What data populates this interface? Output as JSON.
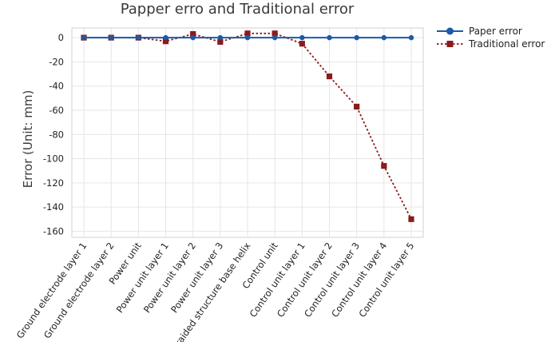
{
  "chart_data": {
    "type": "line",
    "title": "Papper erro and Traditional error",
    "xlabel": "",
    "ylabel": "Error (Unit: mm)",
    "ylim": [
      -165,
      8
    ],
    "yticks": [
      0,
      -20,
      -40,
      -60,
      -80,
      -100,
      -120,
      -140,
      -160
    ],
    "grid": true,
    "legend_position": "top-right (outside plot)",
    "categories": [
      "Ground electrode layer 1",
      "Ground electrode layer 2",
      "Power unit",
      "Power unit layer 1",
      "Power unit layer 2",
      "Power unit layer 3",
      "Braided structure base helix",
      "Control unit",
      "Control unit layer 1",
      "Control unit layer 2",
      "Control unit layer 3",
      "Control unit layer 4",
      "Control unit layer 5"
    ],
    "series": [
      {
        "name": "Paper error",
        "color": "#1a5aa8",
        "line_style": "solid",
        "marker": "circle",
        "values": [
          0,
          0,
          0,
          0,
          0,
          0,
          0,
          0,
          0,
          0,
          0,
          0,
          0
        ]
      },
      {
        "name": "Traditional error",
        "color": "#8b1a1a",
        "line_style": "dotted",
        "marker": "square",
        "values": [
          0,
          0,
          0,
          -3,
          3,
          -3.5,
          3.5,
          3.5,
          -5,
          -32,
          -57,
          -106,
          -150
        ]
      }
    ]
  }
}
